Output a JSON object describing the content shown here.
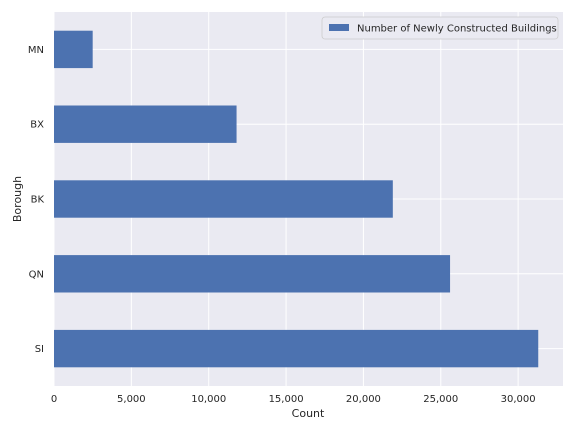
{
  "chart_data": {
    "type": "bar",
    "orientation": "horizontal",
    "categories": [
      "SI",
      "QN",
      "BK",
      "BX",
      "MN"
    ],
    "series": [
      {
        "name": "Number of Newly Constructed Buildings",
        "color": "#4c72b0",
        "values": [
          31300,
          25600,
          21900,
          11800,
          2500
        ]
      }
    ],
    "xlabel": "Count",
    "ylabel": "Borough",
    "xlim": [
      0,
      32900
    ],
    "xticks": [
      0,
      5000,
      10000,
      15000,
      20000,
      25000,
      30000
    ],
    "xtick_labels": [
      "0",
      "5,000",
      "10,000",
      "15,000",
      "20,000",
      "25,000",
      "30,000"
    ],
    "grid": true,
    "legend_position": "top-right",
    "background_color": "#eaeaf2"
  }
}
